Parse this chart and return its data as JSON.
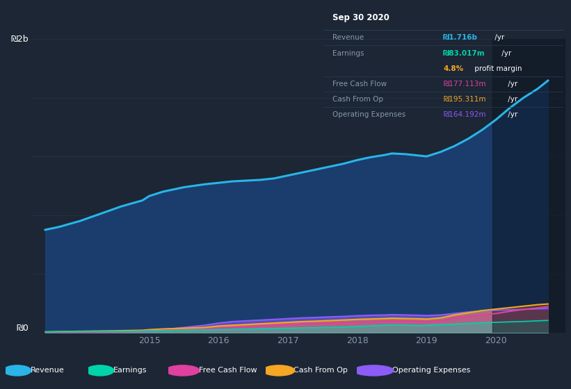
{
  "bg_color": "#1c2635",
  "plot_bg_color": "#1c2635",
  "chart_inner_color": "#1e3050",
  "grid_color": "#253548",
  "title_text": "Sep 30 2020",
  "years_x": [
    2013.5,
    2013.7,
    2014.0,
    2014.3,
    2014.6,
    2014.9,
    2015.0,
    2015.2,
    2015.5,
    2015.8,
    2016.0,
    2016.2,
    2016.4,
    2016.6,
    2016.8,
    2017.0,
    2017.2,
    2017.4,
    2017.6,
    2017.8,
    2018.0,
    2018.2,
    2018.4,
    2018.5,
    2018.7,
    2018.9,
    2019.0,
    2019.2,
    2019.4,
    2019.6,
    2019.8,
    2020.0,
    2020.2,
    2020.4,
    2020.6,
    2020.75
  ],
  "revenue": [
    700,
    720,
    760,
    810,
    860,
    900,
    930,
    960,
    990,
    1010,
    1020,
    1030,
    1035,
    1040,
    1050,
    1070,
    1090,
    1110,
    1130,
    1150,
    1175,
    1195,
    1210,
    1220,
    1215,
    1205,
    1200,
    1230,
    1270,
    1320,
    1380,
    1450,
    1530,
    1600,
    1660,
    1716
  ],
  "earnings": [
    5,
    6,
    7,
    8,
    9,
    10,
    12,
    14,
    16,
    18,
    20,
    22,
    24,
    26,
    28,
    30,
    32,
    34,
    36,
    38,
    42,
    46,
    50,
    52,
    50,
    48,
    50,
    54,
    58,
    62,
    67,
    70,
    73,
    76,
    80,
    83
  ],
  "free_cash_flow": [
    3,
    4,
    5,
    6,
    8,
    10,
    12,
    15,
    18,
    22,
    30,
    35,
    40,
    45,
    50,
    55,
    60,
    62,
    65,
    68,
    72,
    75,
    78,
    80,
    78,
    76,
    75,
    80,
    100,
    110,
    120,
    130,
    145,
    158,
    168,
    177
  ],
  "cash_from_op": [
    5,
    7,
    9,
    11,
    13,
    16,
    20,
    25,
    30,
    35,
    45,
    50,
    55,
    60,
    65,
    70,
    75,
    78,
    82,
    86,
    90,
    93,
    96,
    98,
    96,
    94,
    92,
    100,
    120,
    135,
    150,
    160,
    170,
    180,
    190,
    195
  ],
  "operating_expenses": [
    3,
    4,
    5,
    6,
    7,
    8,
    10,
    20,
    35,
    50,
    65,
    75,
    80,
    85,
    90,
    95,
    100,
    103,
    107,
    110,
    115,
    118,
    120,
    122,
    120,
    118,
    116,
    120,
    130,
    140,
    148,
    152,
    155,
    158,
    162,
    164
  ],
  "revenue_color": "#29b5e8",
  "earnings_color": "#00d4aa",
  "fcf_color": "#e040a0",
  "cfop_color": "#f5a623",
  "opex_color": "#8b5cf6",
  "revenue_fill_color": "#1a3d6e",
  "ylim_max": 2000,
  "xtick_positions": [
    2015,
    2016,
    2017,
    2018,
    2019,
    2020
  ],
  "xtick_labels": [
    "2015",
    "2016",
    "2017",
    "2018",
    "2019",
    "2020"
  ],
  "info_box": {
    "title": "Sep 30 2020",
    "rows": [
      {
        "label": "Revenue",
        "value": "₪1.716b",
        "suffix": " /yr",
        "value_color": "#29b5e8",
        "bold": true
      },
      {
        "label": "Earnings",
        "value": "₪83.017m",
        "suffix": " /yr",
        "value_color": "#00d4aa",
        "bold": true
      },
      {
        "label": "",
        "value": "4.8%",
        "suffix": " profit margin",
        "value_color": "#f5a623",
        "bold": true
      },
      {
        "label": "Free Cash Flow",
        "value": "₪177.113m",
        "suffix": " /yr",
        "value_color": "#e040a0",
        "bold": false
      },
      {
        "label": "Cash From Op",
        "value": "₪195.311m",
        "suffix": " /yr",
        "value_color": "#f5a623",
        "bold": false
      },
      {
        "label": "Operating Expenses",
        "value": "₪164.192m",
        "suffix": " /yr",
        "value_color": "#8b5cf6",
        "bold": false
      }
    ]
  },
  "legend_items": [
    {
      "label": "Revenue",
      "color": "#29b5e8"
    },
    {
      "label": "Earnings",
      "color": "#00d4aa"
    },
    {
      "label": "Free Cash Flow",
      "color": "#e040a0"
    },
    {
      "label": "Cash From Op",
      "color": "#f5a623"
    },
    {
      "label": "Operating Expenses",
      "color": "#8b5cf6"
    }
  ]
}
